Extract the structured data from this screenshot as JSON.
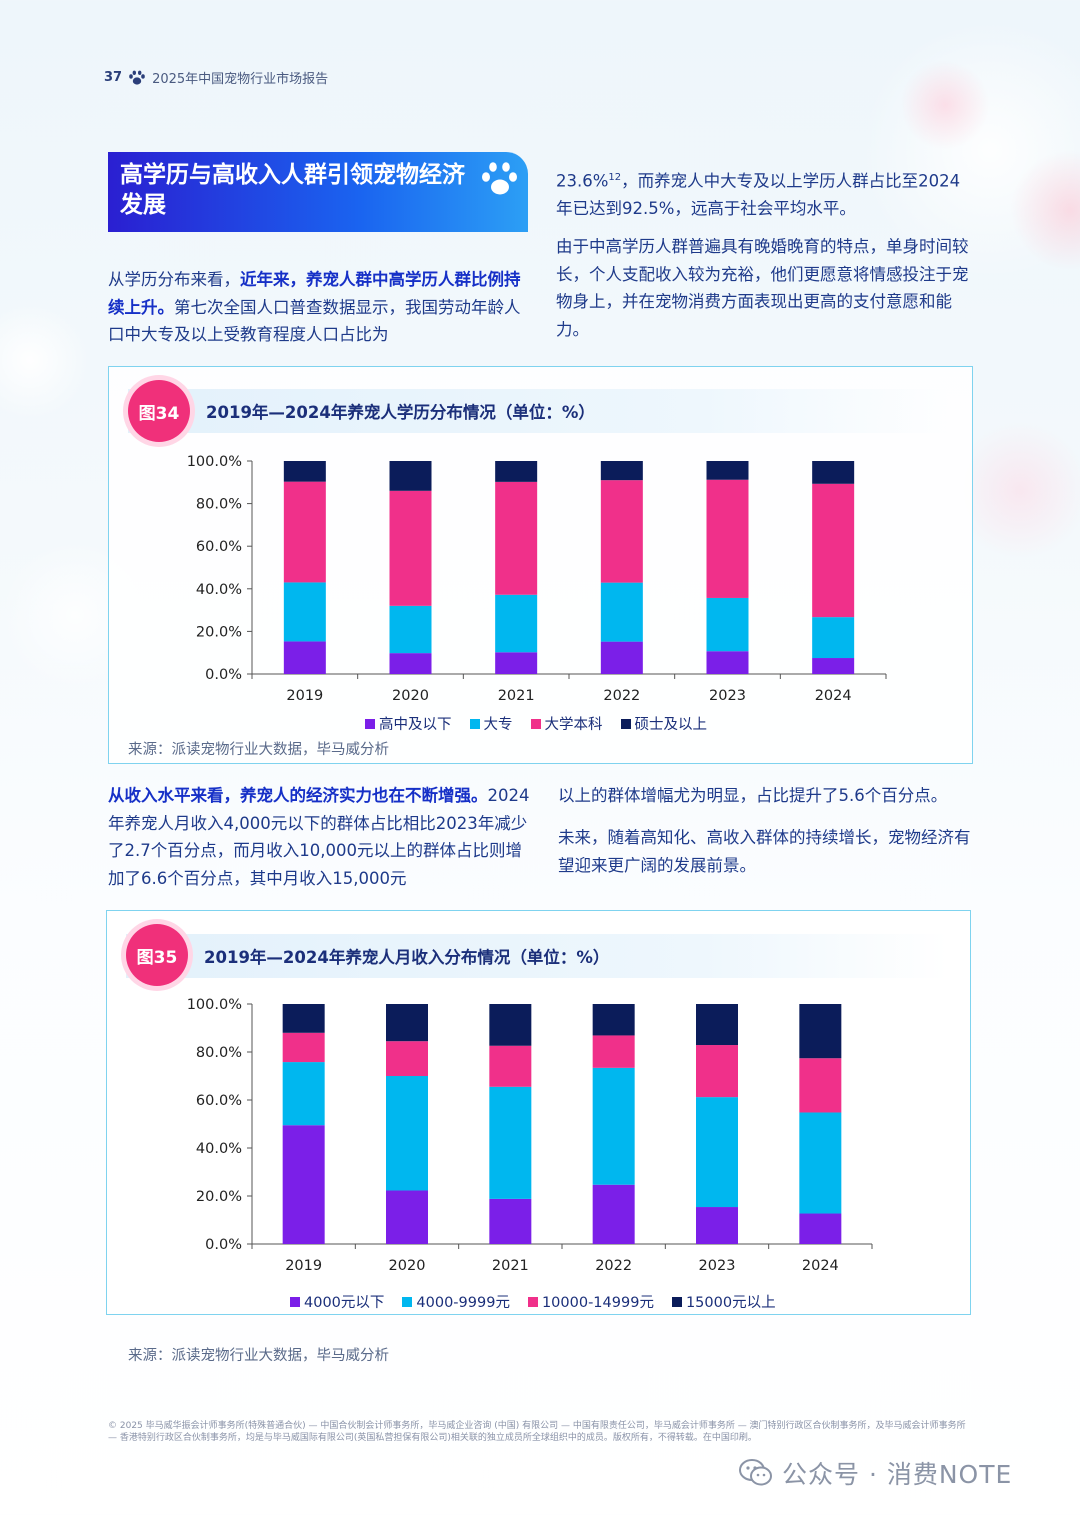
{
  "header": {
    "page_number": "37",
    "report_title": "2025年中国宠物行业市场报告"
  },
  "section": {
    "title": "高学历与高收入人群引领宠物经济发展"
  },
  "para1": {
    "lead": "从学历分布来看，",
    "bold": "近年来，养宠人群中高学历人群比例持续上升。",
    "rest": "第七次全国人口普查数据显示，我国劳动年龄人口中大专及以上受教育程度人口占比为"
  },
  "para2": {
    "text_a": "23.6%",
    "sup": "12",
    "text_b": "，而养宠人中大专及以上学历人群占比至2024年已达到92.5%，远高于社会平均水平。"
  },
  "para3": {
    "text": "由于中高学历人群普遍具有晚婚晚育的特点，单身时间较长，个人支配收入较为充裕，他们更愿意将情感投注于宠物身上，并在宠物消费方面表现出更高的支付意愿和能力。"
  },
  "para4": {
    "bold": "从收入水平来看，养宠人的经济实力也在不断增强。",
    "rest": "2024年养宠人月收入4,000元以下的群体占比相比2023年减少了2.7个百分点，而月收入10,000元以上的群体占比则增加了6.6个百分点，其中月收入15,000元"
  },
  "para5": {
    "text": "以上的群体增幅尤为明显，占比提升了5.6个百分点。"
  },
  "para6": {
    "text": "未来，随着高知化、高收入群体的持续增长，宠物经济有望迎来更广阔的发展前景。"
  },
  "fig34": {
    "badge": "图34",
    "title": "2019年—2024年养宠人学历分布情况（单位：%）",
    "source": "来源：派读宠物行业大数据，毕马威分析"
  },
  "fig35": {
    "badge": "图35",
    "title": "2019年—2024年养宠人月收入分布情况（单位：%）",
    "source": "来源：派读宠物行业大数据，毕马威分析"
  },
  "chart_data": [
    {
      "type": "bar",
      "stacked": true,
      "title": "2019年—2024年养宠人学历分布情况（单位：%）",
      "categories": [
        "2019",
        "2020",
        "2021",
        "2022",
        "2023",
        "2024"
      ],
      "y_ticks": [
        "0.0%",
        "20.0%",
        "40.0%",
        "60.0%",
        "80.0%",
        "100.0%"
      ],
      "ylim": [
        0,
        100
      ],
      "series": [
        {
          "name": "高中及以下",
          "color": "#7b1fe8",
          "values": [
            15.3,
            9.8,
            10.2,
            15.2,
            10.7,
            7.5
          ]
        },
        {
          "name": "大专",
          "color": "#00b7ef",
          "values": [
            27.7,
            22.2,
            27.0,
            27.7,
            25.0,
            19.2
          ]
        },
        {
          "name": "大学本科",
          "color": "#f0308a",
          "values": [
            47.3,
            54.0,
            53.0,
            48.1,
            55.5,
            62.6
          ]
        },
        {
          "name": "硕士及以上",
          "color": "#0b1c5a",
          "values": [
            9.7,
            14.0,
            9.8,
            9.0,
            8.8,
            10.7
          ]
        }
      ]
    },
    {
      "type": "bar",
      "stacked": true,
      "title": "2019年—2024年养宠人月收入分布情况（单位：%）",
      "categories": [
        "2019",
        "2020",
        "2021",
        "2022",
        "2023",
        "2024"
      ],
      "y_ticks": [
        "0.0%",
        "20.0%",
        "40.0%",
        "60.0%",
        "80.0%",
        "100.0%"
      ],
      "ylim": [
        0,
        100
      ],
      "series": [
        {
          "name": "4000元以下",
          "color": "#7b1fe8",
          "values": [
            49.5,
            22.3,
            18.8,
            24.7,
            15.4,
            12.7
          ]
        },
        {
          "name": "4000-9999元",
          "color": "#00b7ef",
          "values": [
            26.3,
            47.7,
            46.7,
            48.7,
            45.8,
            42.1
          ]
        },
        {
          "name": "10000-14999元",
          "color": "#f0308a",
          "values": [
            12.2,
            14.5,
            17.1,
            13.5,
            21.7,
            22.6
          ]
        },
        {
          "name": "15000元以上",
          "color": "#0b1c5a",
          "values": [
            12.0,
            15.5,
            17.4,
            13.1,
            17.1,
            22.6
          ]
        }
      ]
    }
  ],
  "footer": {
    "text": "© 2025 毕马威华振会计师事务所(特殊普通合伙) — 中国合伙制会计师事务所，毕马威企业咨询 (中国) 有限公司 — 中国有限责任公司，毕马威会计师事务所 — 澳门特别行政区合伙制事务所，及毕马威会计师事务所 — 香港特别行政区合伙制事务所，均是与毕马威国际有限公司(英国私营担保有限公司)相关联的独立成员所全球组织中的成员。版权所有，不得转载。在中国印刷。"
  },
  "watermark": {
    "text": "公众号 · 消费NOTE"
  }
}
